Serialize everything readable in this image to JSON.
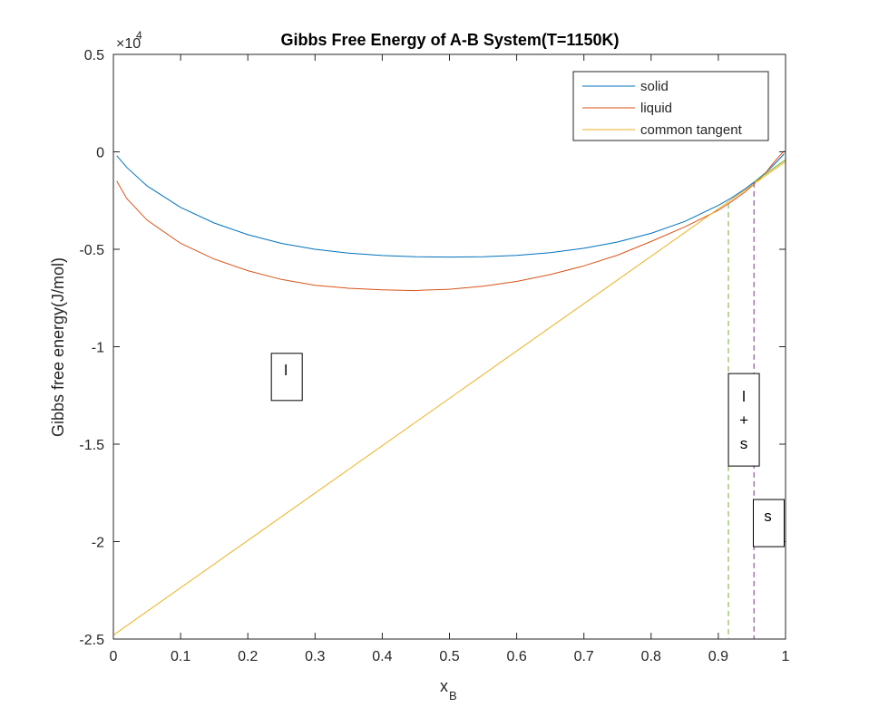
{
  "chart_data": {
    "type": "line",
    "title": "Gibbs Free Energy of A-B System(T=1150K)",
    "xlabel_main": "x",
    "xlabel_sub": "B",
    "ylabel": "Gibbs free energy(J/mol)",
    "exponent_base": "×10",
    "exponent_power": "4",
    "xlim": [
      0,
      1
    ],
    "ylim": [
      -2.5,
      0.5
    ],
    "x_ticks": [
      "0",
      "0.1",
      "0.2",
      "0.3",
      "0.4",
      "0.5",
      "0.6",
      "0.7",
      "0.8",
      "0.9",
      "1"
    ],
    "x_tick_values": [
      0,
      0.1,
      0.2,
      0.3,
      0.4,
      0.5,
      0.6,
      0.7,
      0.8,
      0.9,
      1
    ],
    "y_ticks": [
      "0.5",
      "0",
      "-0.5",
      "-1",
      "-1.5",
      "-2",
      "-2.5"
    ],
    "y_tick_values": [
      0.5,
      0,
      -0.5,
      -1,
      -1.5,
      -2,
      -2.5
    ],
    "grid": false,
    "legend_position": "top-right",
    "series": [
      {
        "name": "solid",
        "color": "#0072BD",
        "x": [
          0.005,
          0.02,
          0.05,
          0.1,
          0.15,
          0.2,
          0.25,
          0.3,
          0.35,
          0.4,
          0.45,
          0.5,
          0.55,
          0.6,
          0.65,
          0.7,
          0.75,
          0.8,
          0.85,
          0.9,
          0.92,
          0.94,
          0.955,
          0.97,
          0.98,
          0.99,
          0.998
        ],
        "y": [
          -0.02,
          -0.08,
          -0.175,
          -0.285,
          -0.365,
          -0.425,
          -0.47,
          -0.5,
          -0.52,
          -0.532,
          -0.538,
          -0.54,
          -0.538,
          -0.531,
          -0.517,
          -0.495,
          -0.463,
          -0.418,
          -0.357,
          -0.275,
          -0.236,
          -0.19,
          -0.15,
          -0.108,
          -0.075,
          -0.04,
          -0.01
        ]
      },
      {
        "name": "liquid",
        "color": "#D95319",
        "x": [
          0.005,
          0.02,
          0.05,
          0.1,
          0.15,
          0.2,
          0.25,
          0.3,
          0.35,
          0.4,
          0.45,
          0.46,
          0.5,
          0.55,
          0.6,
          0.65,
          0.7,
          0.75,
          0.8,
          0.85,
          0.9,
          0.92,
          0.94,
          0.955,
          0.97,
          0.98,
          0.99,
          0.998
        ],
        "y": [
          -0.15,
          -0.24,
          -0.35,
          -0.47,
          -0.55,
          -0.61,
          -0.655,
          -0.685,
          -0.7,
          -0.708,
          -0.712,
          -0.71,
          -0.705,
          -0.69,
          -0.665,
          -0.63,
          -0.585,
          -0.53,
          -0.46,
          -0.385,
          -0.3,
          -0.255,
          -0.205,
          -0.16,
          -0.11,
          -0.065,
          -0.025,
          0.005
        ]
      },
      {
        "name": "common tangent",
        "color": "#EDB120",
        "x": [
          0,
          1
        ],
        "y": [
          -2.48,
          -0.05
        ]
      }
    ],
    "vertical_lines": [
      {
        "x": 0.915,
        "y_top": -0.262,
        "color": "#77AC30"
      },
      {
        "x": 0.953,
        "y_top": -0.155,
        "color": "#7E2F8E"
      }
    ],
    "extra_segments": [
      {
        "x": [
          0.953,
          1
        ],
        "y": [
          -0.155,
          -0.04
        ],
        "color": "#77AC30"
      }
    ],
    "annotations": [
      {
        "text_lines": [
          "l"
        ],
        "x": 0.258,
        "y": -1.155
      },
      {
        "text_lines": [
          "l",
          "+",
          "s"
        ],
        "x": 0.938,
        "y": -1.375
      },
      {
        "text_lines": [
          "s"
        ],
        "x": 0.975,
        "y": -1.905
      }
    ]
  }
}
